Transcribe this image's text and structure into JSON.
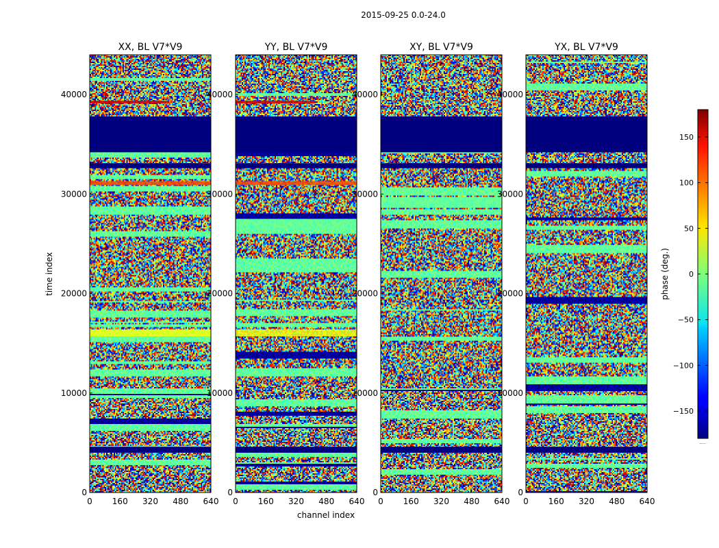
{
  "chart_data": {
    "type": "heatmap",
    "suptitle": "2015-09-25 0.0-24.0",
    "xlabel": "channel index",
    "ylabel": "time index",
    "colorbar_label": "phase (deg.)",
    "colorbar_range": [
      -180,
      180
    ],
    "colorbar_ticks": [
      150,
      100,
      50,
      0,
      -50,
      -100,
      -150
    ],
    "colorbar_tick_labels": [
      "150",
      "100",
      "50",
      "0",
      "−50",
      "−100",
      "−150"
    ],
    "colorbar_extra_label": ".....",
    "xlim": [
      0,
      640
    ],
    "ylim": [
      0,
      44000
    ],
    "xticks": [
      0,
      160,
      320,
      480,
      640
    ],
    "yticks": [
      0,
      10000,
      20000,
      30000,
      40000
    ],
    "panels": [
      {
        "title": "XX, BL V7*V9",
        "pol": "XX"
      },
      {
        "title": "YY, BL V7*V9",
        "pol": "YY"
      },
      {
        "title": "XY, BL V7*V9",
        "pol": "XY"
      },
      {
        "title": "YX, BL V7*V9",
        "pol": "YX"
      }
    ],
    "flagged_bands_time_index": [
      [
        34200,
        37800
      ],
      [
        32600,
        33100
      ],
      [
        4000,
        4600
      ]
    ],
    "phase_bands_time_index": [
      {
        "range": [
          39100,
          39400
        ],
        "phase_deg": 150,
        "panels": [
          "XX",
          "YY"
        ],
        "x_max": 420
      },
      {
        "range": [
          15700,
          16400
        ],
        "phase_deg": 40,
        "panels": [
          "XX",
          "YY"
        ]
      },
      {
        "range": [
          30900,
          31300
        ],
        "phase_deg": 110,
        "panels": [
          "XX",
          "YY"
        ]
      }
    ],
    "colormap": "jet",
    "grid": false
  }
}
